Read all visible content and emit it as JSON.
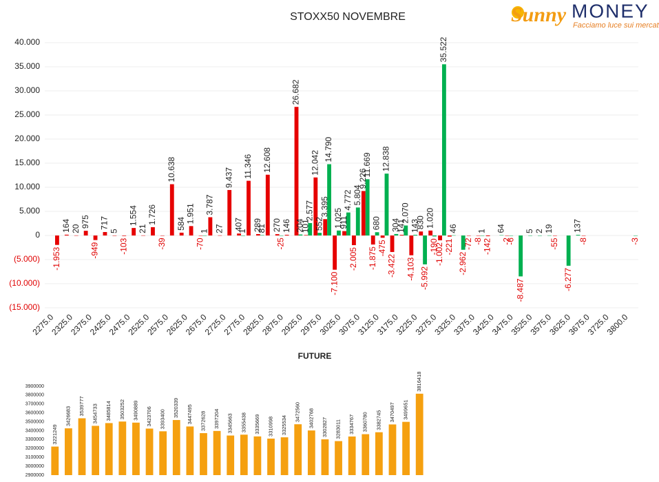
{
  "logo": {
    "brand1": "Sunny",
    "brand2": "MONEY",
    "tagline": "Facciamo luce sui mercati"
  },
  "chart_data": [
    {
      "type": "bar",
      "title": "STOXX50 NOVEMBRE",
      "grid": true,
      "negative_label_color": "#e00000",
      "categories": [
        "2275.0",
        null,
        "2325.0",
        null,
        "2375.0",
        null,
        "2425.0",
        null,
        "2475.0",
        null,
        "2525.0",
        null,
        "2575.0",
        null,
        "2625.0",
        null,
        "2675.0",
        null,
        "2725.0",
        null,
        "2775.0",
        null,
        "2825.0",
        null,
        "2875.0",
        null,
        "2925.0",
        null,
        "2975.0",
        null,
        "3025.0",
        null,
        "3075.0",
        null,
        "3125.0",
        null,
        "3175.0",
        null,
        "3225.0",
        null,
        "3275.0",
        null,
        "3325.0",
        null,
        "3375.0",
        null,
        "3425.0",
        null,
        "3475.0",
        null,
        "3525.0",
        null,
        "3575.0",
        null,
        "3625.0",
        null,
        "3675.0",
        null,
        "3725.0",
        null,
        "3800.0",
        null
      ],
      "series": [
        {
          "color": "#e60000",
          "values": [
            null,
            -1953,
            164,
            20,
            975,
            -949,
            717,
            5,
            -103,
            1554,
            21,
            1726,
            -39,
            10638,
            584,
            1951,
            -70,
            3787,
            27,
            9437,
            407,
            11346,
            289,
            12608,
            270,
            146,
            26682,
            101,
            12042,
            3395,
            -7100,
            911,
            -2005,
            9226,
            -1875,
            -475,
            -3422,
            141,
            -4103,
            830,
            1020,
            -1002,
            -221,
            null,
            -72,
            -8,
            -142,
            null,
            -2,
            null,
            null,
            null,
            null,
            -55,
            null,
            null,
            -8,
            null,
            null,
            null,
            null,
            null
          ],
          "value_labels": [
            null,
            "-1.953",
            "164",
            "20",
            "975",
            "-949",
            "717",
            "5",
            "-103",
            "1.554",
            "21",
            "1.726",
            "-39",
            "10.638",
            "584",
            "1.951",
            "-70",
            "3.787",
            "27",
            "9.437",
            "407",
            "11.346",
            "289",
            "12.608",
            "270",
            "146",
            "26.682",
            "101",
            "12.042",
            "3.395",
            "-7.100",
            "911",
            "-2.005",
            "9.226",
            "-1.875",
            "-475",
            "-3.422",
            "141",
            "-4.103",
            "830",
            "1.020",
            "-1.002",
            "-221",
            null,
            "-72",
            "-8",
            "-142",
            null,
            "-2",
            null,
            null,
            null,
            null,
            "-55",
            null,
            null,
            "-8",
            null,
            null,
            null,
            null,
            null
          ]
        },
        {
          "color": "#00b050",
          "values": [
            null,
            null,
            null,
            null,
            null,
            null,
            null,
            null,
            null,
            null,
            null,
            null,
            null,
            null,
            null,
            null,
            1,
            null,
            null,
            null,
            1,
            null,
            81,
            null,
            -25,
            null,
            204,
            2577,
            552,
            14790,
            1025,
            4772,
            5804,
            11669,
            680,
            12838,
            304,
            2070,
            143,
            -5992,
            -190,
            35522,
            46,
            -2962,
            null,
            1,
            null,
            64,
            -6,
            -8487,
            5,
            2,
            19,
            null,
            -6277,
            137,
            null,
            null,
            null,
            null,
            null,
            -3
          ],
          "value_labels": [
            null,
            null,
            null,
            null,
            null,
            null,
            null,
            null,
            null,
            null,
            null,
            null,
            null,
            null,
            null,
            null,
            "1",
            null,
            null,
            null,
            "1",
            null,
            "81",
            null,
            "-25",
            null,
            "204",
            "2.577",
            "552",
            "14.790",
            "1.025",
            "4.772",
            "5.804",
            "11.669",
            "680",
            "12.838",
            "304",
            "2.070",
            "143",
            "-5.992",
            "-190",
            "35.522",
            "46",
            "-2.962",
            null,
            "1",
            null,
            "64",
            "-6",
            "-8.487",
            "5",
            "2",
            "19",
            null,
            "-6.277",
            "137",
            null,
            null,
            null,
            null,
            null,
            "-3"
          ]
        }
      ],
      "ylim": [
        -15000,
        40000
      ],
      "yticks": [
        {
          "value": 40000,
          "label": "40.000"
        },
        {
          "value": 35000,
          "label": "35.000"
        },
        {
          "value": 30000,
          "label": "30.000"
        },
        {
          "value": 25000,
          "label": "25.000"
        },
        {
          "value": 20000,
          "label": "20.000"
        },
        {
          "value": 15000,
          "label": "15.000"
        },
        {
          "value": 10000,
          "label": "10.000"
        },
        {
          "value": 5000,
          "label": "5.000"
        },
        {
          "value": 0,
          "label": "0"
        },
        {
          "value": -5000,
          "label": "(5.000)"
        },
        {
          "value": -10000,
          "label": "(10.000)"
        },
        {
          "value": -15000,
          "label": "(15.000)"
        }
      ]
    },
    {
      "type": "bar",
      "title": "FUTURE",
      "grid": false,
      "color": "#f5a010",
      "values": [
        3221249,
        3426683,
        3539777,
        3454733,
        3485814,
        3503252,
        3490889,
        3423706,
        3393400,
        3520339,
        3447495,
        3372628,
        3397204,
        3345663,
        3355438,
        3335669,
        3310998,
        3325534,
        3472560,
        3402768,
        3302827,
        3283011,
        3334767,
        3360780,
        3382745,
        3470497,
        3499651,
        3816418
      ],
      "ylim": [
        2900000,
        3900000
      ],
      "yticks": [
        3900000,
        3800000,
        3700000,
        3600000,
        3500000,
        3400000,
        3300000,
        3200000,
        3100000,
        3000000,
        2900000
      ]
    }
  ]
}
